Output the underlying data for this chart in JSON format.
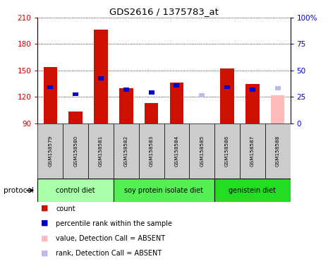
{
  "title": "GDS2616 / 1375783_at",
  "samples": [
    "GSM158579",
    "GSM158580",
    "GSM158581",
    "GSM158582",
    "GSM158583",
    "GSM158584",
    "GSM158585",
    "GSM158586",
    "GSM158587",
    "GSM158588"
  ],
  "count_values": [
    154,
    103,
    196,
    130,
    113,
    136,
    null,
    152,
    135,
    null
  ],
  "count_absent": [
    null,
    null,
    null,
    null,
    null,
    null,
    90,
    null,
    null,
    122
  ],
  "rank_values": [
    131,
    123,
    141,
    128,
    125,
    133,
    null,
    131,
    128,
    null
  ],
  "rank_absent": [
    null,
    null,
    null,
    null,
    null,
    null,
    122,
    null,
    null,
    130
  ],
  "ylim_left": [
    90,
    210
  ],
  "ylim_right": [
    0,
    100
  ],
  "yticks_left": [
    90,
    120,
    150,
    180,
    210
  ],
  "yticks_right": [
    0,
    25,
    50,
    75,
    100
  ],
  "ytick_labels_left": [
    "90",
    "120",
    "150",
    "180",
    "210"
  ],
  "ytick_labels_right": [
    "0",
    "25",
    "50",
    "75",
    "100%"
  ],
  "groups": [
    {
      "label": "control diet",
      "samples": [
        0,
        1,
        2
      ],
      "color": "#aaffaa"
    },
    {
      "label": "soy protein isolate diet",
      "samples": [
        3,
        4,
        5,
        6
      ],
      "color": "#55ee55"
    },
    {
      "label": "genistein diet",
      "samples": [
        7,
        8,
        9
      ],
      "color": "#22dd22"
    }
  ],
  "count_color": "#cc1100",
  "rank_color": "#0000cc",
  "count_absent_color": "#ffbbbb",
  "rank_absent_color": "#bbbbee",
  "protocol_label": "protocol",
  "legend_items": [
    {
      "label": "count",
      "color": "#cc1100"
    },
    {
      "label": "percentile rank within the sample",
      "color": "#0000cc"
    },
    {
      "label": "value, Detection Call = ABSENT",
      "color": "#ffbbbb"
    },
    {
      "label": "rank, Detection Call = ABSENT",
      "color": "#bbbbee"
    }
  ]
}
